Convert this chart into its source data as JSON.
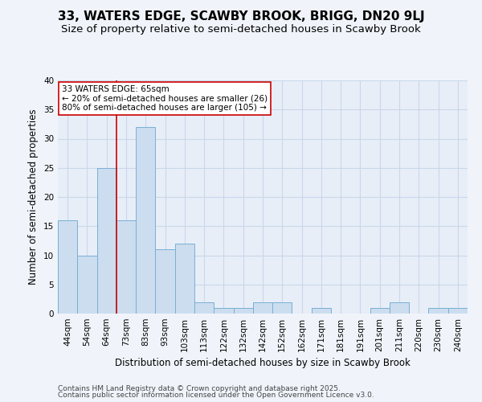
{
  "title": "33, WATERS EDGE, SCAWBY BROOK, BRIGG, DN20 9LJ",
  "subtitle": "Size of property relative to semi-detached houses in Scawby Brook",
  "xlabel": "Distribution of semi-detached houses by size in Scawby Brook",
  "ylabel": "Number of semi-detached properties",
  "categories": [
    "44sqm",
    "54sqm",
    "64sqm",
    "73sqm",
    "83sqm",
    "93sqm",
    "103sqm",
    "113sqm",
    "122sqm",
    "132sqm",
    "142sqm",
    "152sqm",
    "162sqm",
    "171sqm",
    "181sqm",
    "191sqm",
    "201sqm",
    "211sqm",
    "220sqm",
    "230sqm",
    "240sqm"
  ],
  "values": [
    16,
    10,
    25,
    16,
    32,
    11,
    12,
    2,
    1,
    1,
    2,
    2,
    0,
    1,
    0,
    0,
    1,
    2,
    0,
    1,
    1
  ],
  "bar_color": "#ccddef",
  "bar_edge_color": "#7aafd4",
  "red_line_index": 2,
  "annotation_text_line1": "33 WATERS EDGE: 65sqm",
  "annotation_text_line2": "← 20% of semi-detached houses are smaller (26)",
  "annotation_text_line3": "80% of semi-detached houses are larger (105) →",
  "annotation_box_facecolor": "#ffffff",
  "annotation_box_edgecolor": "#cc0000",
  "ylim": [
    0,
    40
  ],
  "yticks": [
    0,
    5,
    10,
    15,
    20,
    25,
    30,
    35,
    40
  ],
  "grid_color": "#c8d8ea",
  "background_color": "#f0f4fa",
  "plot_bg_color": "#e8eef8",
  "footer_line1": "Contains HM Land Registry data © Crown copyright and database right 2025.",
  "footer_line2": "Contains public sector information licensed under the Open Government Licence v3.0.",
  "title_fontsize": 11,
  "subtitle_fontsize": 9.5,
  "ylabel_fontsize": 8.5,
  "xlabel_fontsize": 8.5,
  "tick_fontsize": 7.5,
  "annotation_fontsize": 7.5,
  "footer_fontsize": 6.5
}
